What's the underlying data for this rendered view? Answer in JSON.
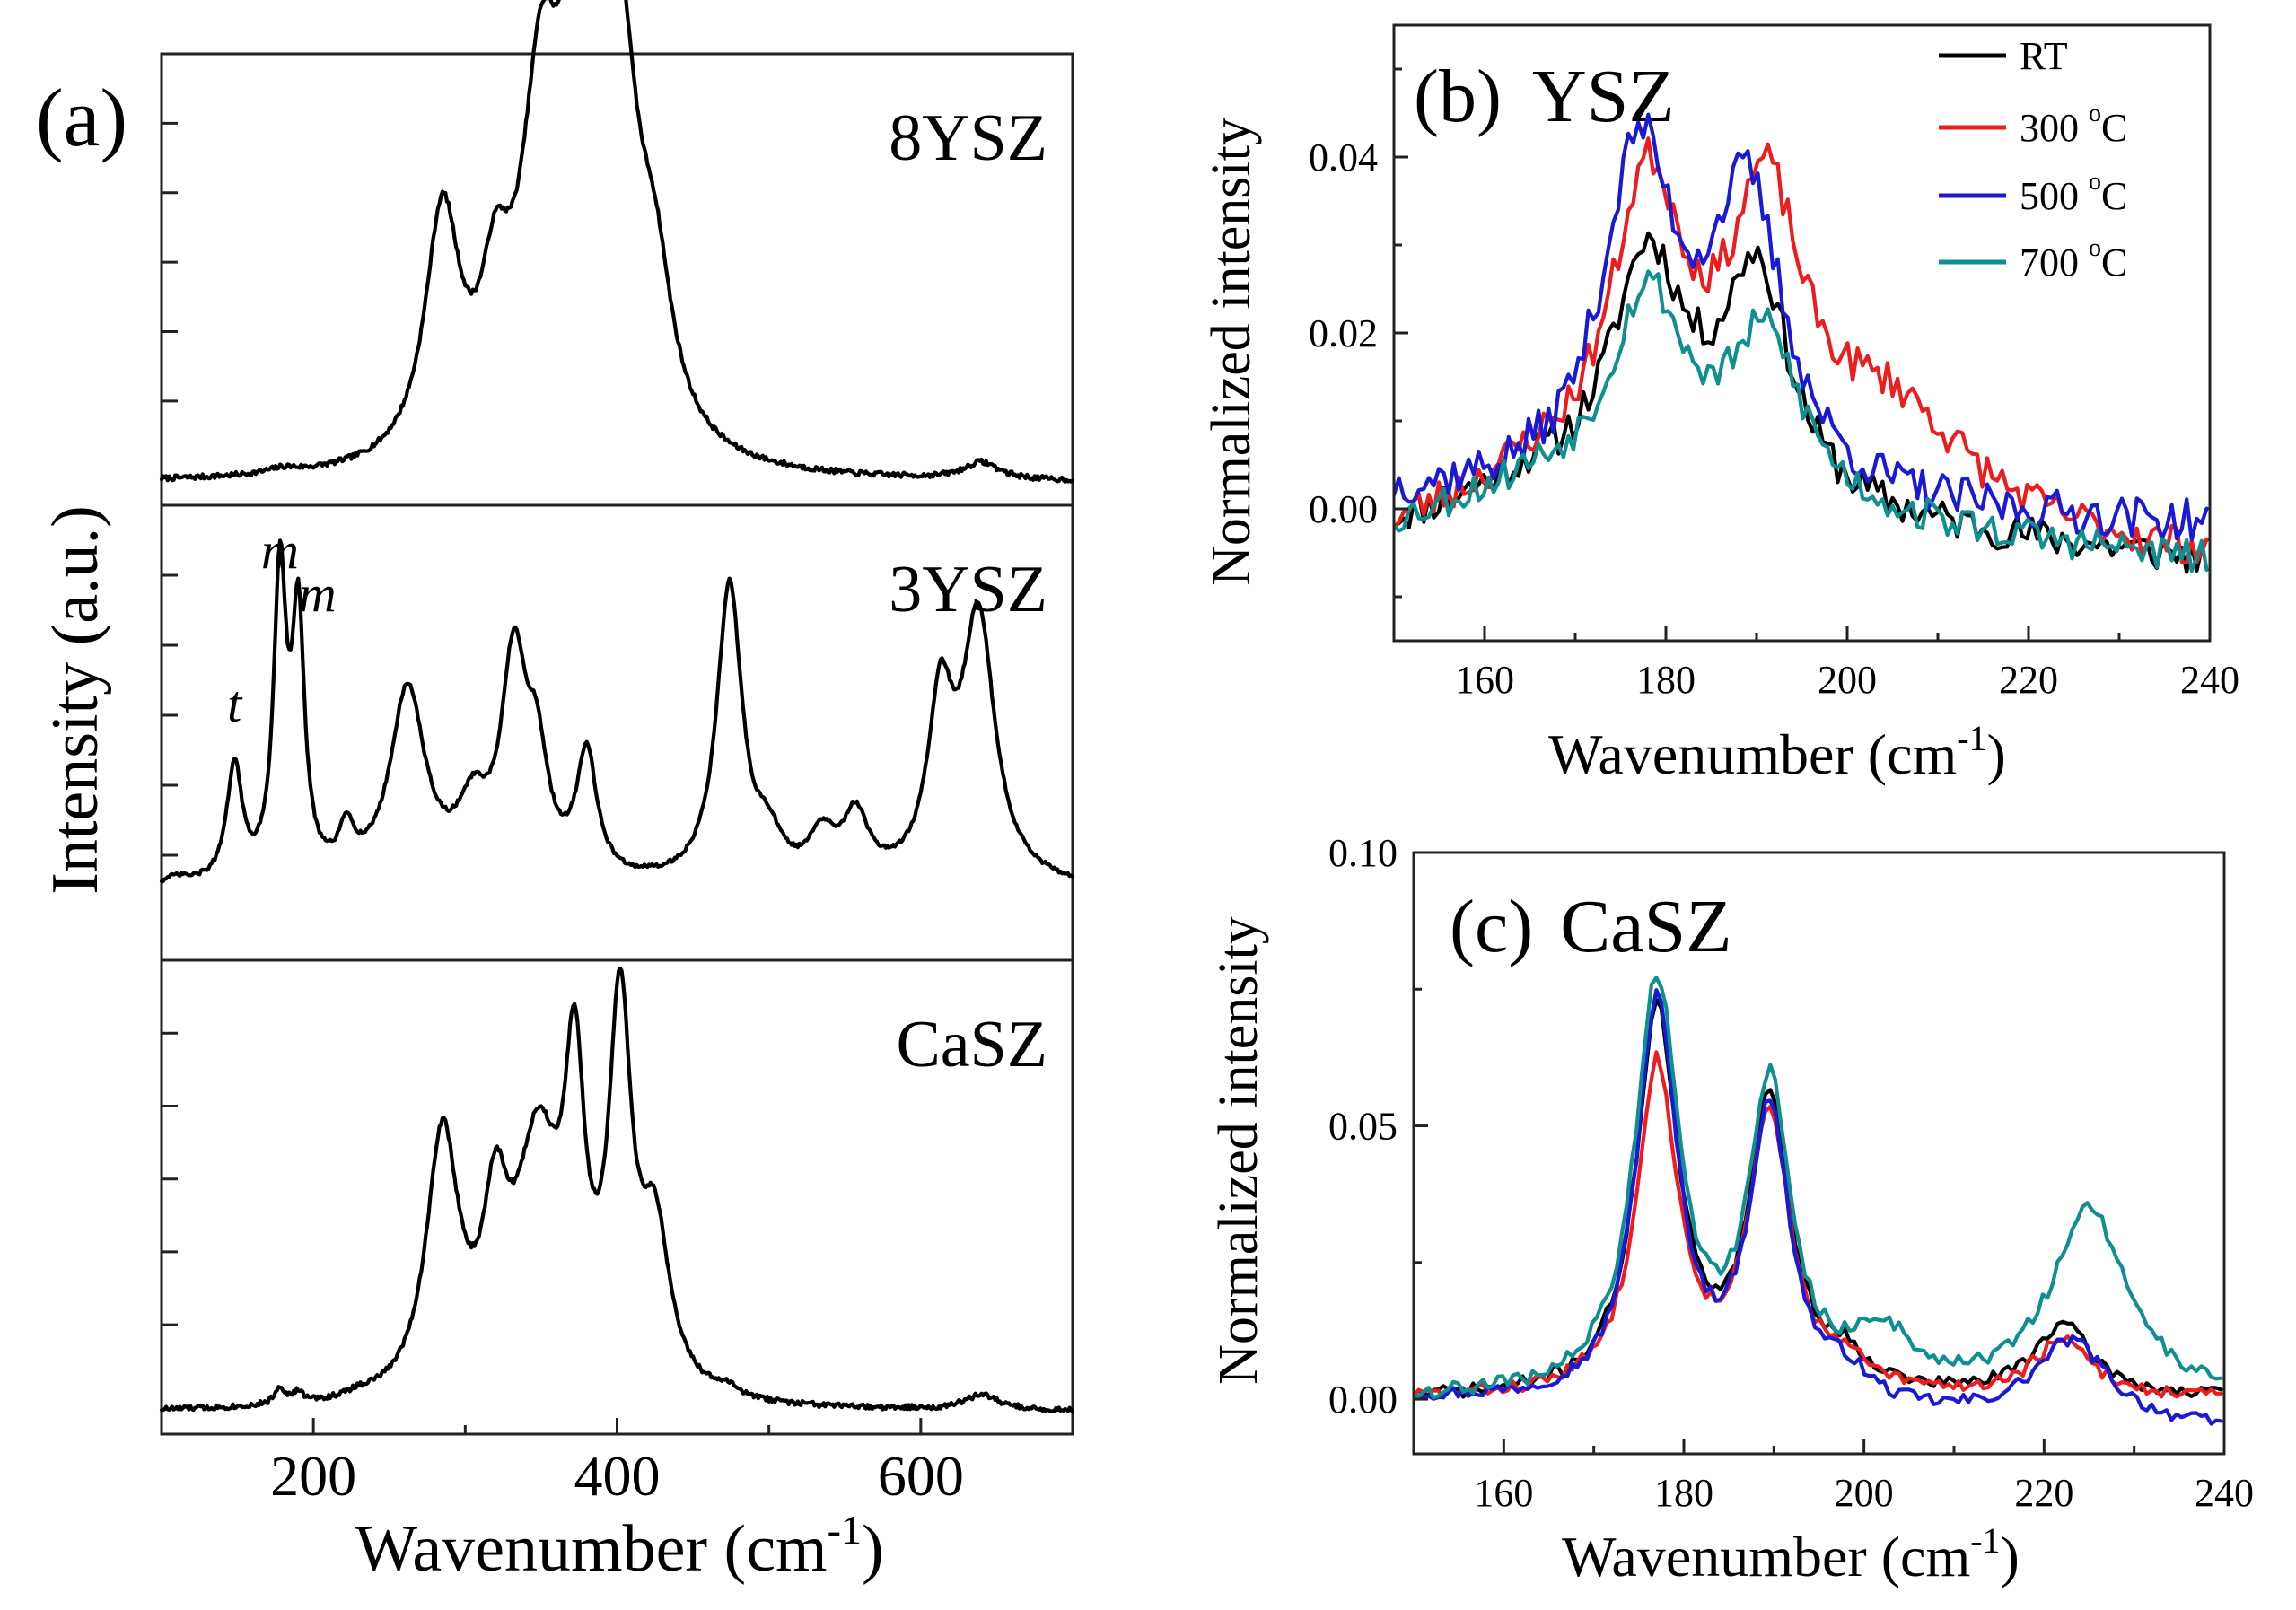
{
  "chart_data": [
    {
      "panel": "(a)",
      "type": "line",
      "title": "(a)",
      "xlabel": "Wavenumber (cm",
      "xlabel_sup": "-1",
      "xlabel_close": ")",
      "ylabel": "Intensity (a.u.)",
      "xlim": [
        100,
        700
      ],
      "xticks": [
        200,
        400,
        600
      ],
      "grid": false,
      "series": [
        {
          "name": "8YSZ",
          "color": "#000000",
          "peaks": [
            [
              180,
              0.012,
              12
            ],
            [
              285,
              0.56,
              14
            ],
            [
              320,
              0.3,
              12
            ],
            [
              350,
              0.75,
              16
            ],
            [
              375,
              0.84,
              14
            ],
            [
              400,
              0.92,
              16
            ],
            [
              425,
              0.3,
              14
            ],
            [
              640,
              0.04,
              14
            ]
          ],
          "ylim": [
            -0.05,
            1.0
          ]
        },
        {
          "name": "3YSZ",
          "color": "#000000",
          "annotations": [
            {
              "text": "t",
              "x": 148
            },
            {
              "text": "m",
              "x": 178
            },
            {
              "text": "m",
              "x": 192
            }
          ],
          "peaks": [
            [
              110,
              0.02,
              10
            ],
            [
              148,
              0.33,
              6
            ],
            [
              178,
              0.86,
              5
            ],
            [
              190,
              0.72,
              5
            ],
            [
              222,
              0.12,
              6
            ],
            [
              262,
              0.55,
              14
            ],
            [
              305,
              0.18,
              12
            ],
            [
              332,
              0.6,
              10
            ],
            [
              347,
              0.3,
              9
            ],
            [
              380,
              0.35,
              8
            ],
            [
              474,
              0.85,
              10
            ],
            [
              500,
              0.1,
              10
            ],
            [
              535,
              0.12,
              10
            ],
            [
              557,
              0.18,
              10
            ],
            [
              613,
              0.48,
              10
            ],
            [
              638,
              0.75,
              13
            ]
          ],
          "ylim": [
            -0.2,
            1.1
          ]
        },
        {
          "name": "CaSZ",
          "color": "#000000",
          "peaks": [
            [
              178,
              0.04,
              4
            ],
            [
              190,
              0.025,
              4
            ],
            [
              230,
              0.01,
              10
            ],
            [
              285,
              0.6,
              13
            ],
            [
              320,
              0.35,
              10
            ],
            [
              348,
              0.55,
              18
            ],
            [
              372,
              0.64,
              8
            ],
            [
              402,
              0.85,
              9
            ],
            [
              425,
              0.35,
              12
            ],
            [
              472,
              0.02,
              8
            ],
            [
              640,
              0.035,
              14
            ]
          ],
          "ylim": [
            -0.05,
            1.05
          ]
        }
      ]
    },
    {
      "panel": "(b)",
      "type": "line",
      "title": "(b)",
      "label": "YSZ",
      "xlabel": "Wavenumber (cm",
      "xlabel_sup": "-1",
      "xlabel_close": ")",
      "ylabel": "Normalized intensity",
      "xlim": [
        150,
        240
      ],
      "ylim": [
        -0.015,
        0.055
      ],
      "xticks": [
        160,
        180,
        200,
        220,
        240
      ],
      "yticks": [
        0.0,
        0.02,
        0.04
      ],
      "ytick_labels": [
        "0.00",
        "0.02",
        "0.04"
      ],
      "legend_position": "top-right",
      "series": [
        {
          "name": "RT",
          "color": "#000000",
          "seed": 11,
          "noise": 0.0022,
          "baseline": [
            [
              150,
              -0.002
            ],
            [
              165,
              0.002
            ],
            [
              240,
              -0.006
            ]
          ],
          "peaks": [
            [
              178,
              0.027,
              5
            ],
            [
              190,
              0.026,
              4.5
            ]
          ]
        },
        {
          "name": "300",
          "color": "#ee1c1c",
          "seed": 23,
          "noise": 0.0022,
          "baseline": [
            [
              150,
              -0.003
            ],
            [
              165,
              0.002
            ],
            [
              240,
              -0.006
            ]
          ],
          "peaks": [
            [
              178,
              0.034,
              5
            ],
            [
              191,
              0.032,
              5
            ],
            [
              205,
              0.012,
              10
            ]
          ]
        },
        {
          "name": "500",
          "color": "#1a1ad6",
          "seed": 37,
          "noise": 0.0024,
          "baseline": [
            [
              150,
              0.001
            ],
            [
              165,
              0.001
            ],
            [
              240,
              -0.002
            ]
          ],
          "peaks": [
            [
              177,
              0.038,
              5
            ],
            [
              189,
              0.033,
              5
            ]
          ]
        },
        {
          "name": "700",
          "color": "#0f8f8f",
          "seed": 53,
          "noise": 0.002,
          "baseline": [
            [
              150,
              -0.002
            ],
            [
              165,
              0.002
            ],
            [
              240,
              -0.006
            ]
          ],
          "peaks": [
            [
              178,
              0.023,
              5
            ],
            [
              191,
              0.019,
              5
            ]
          ]
        }
      ],
      "legend_entries": [
        {
          "label": "RT",
          "unit": ""
        },
        {
          "label": "300 ",
          "unit": "o",
          "suffix": "C"
        },
        {
          "label": "500 ",
          "unit": "o",
          "suffix": "C"
        },
        {
          "label": "700 ",
          "unit": "o",
          "suffix": "C"
        }
      ]
    },
    {
      "panel": "(c)",
      "type": "line",
      "title": "(c)",
      "label": "CaSZ",
      "xlabel": "Wavenumber (cm",
      "xlabel_sup": "-1",
      "xlabel_close": ")",
      "ylabel": "Normalized intensity",
      "xlim": [
        150,
        240
      ],
      "ylim": [
        -0.01,
        0.1
      ],
      "xticks": [
        160,
        180,
        200,
        220,
        240
      ],
      "yticks": [
        0.0,
        0.05,
        0.1
      ],
      "ytick_labels": [
        "0.00",
        "0.05",
        "0.10"
      ],
      "series": [
        {
          "name": "RT",
          "color": "#000000",
          "seed": 71,
          "noise": 0.0012,
          "baseline": [
            [
              150,
              0.0
            ],
            [
              240,
              0.0
            ]
          ],
          "peaks": [
            [
              177,
              0.07,
              2.8
            ],
            [
              189.5,
              0.053,
              2.8
            ],
            [
              198,
              0.005,
              3
            ],
            [
              222,
              0.013,
              4
            ]
          ]
        },
        {
          "name": "300",
          "color": "#ee1c1c",
          "seed": 83,
          "noise": 0.0012,
          "baseline": [
            [
              150,
              0.0
            ],
            [
              240,
              0.0
            ]
          ],
          "peaks": [
            [
              177,
              0.06,
              2.8
            ],
            [
              189.5,
              0.05,
              2.8
            ],
            [
              198,
              0.004,
              3
            ],
            [
              222,
              0.01,
              4
            ]
          ]
        },
        {
          "name": "500",
          "color": "#1a1ad6",
          "seed": 97,
          "noise": 0.0012,
          "baseline": [
            [
              150,
              0.0
            ],
            [
              240,
              -0.006
            ]
          ],
          "peaks": [
            [
              177,
              0.073,
              2.8
            ],
            [
              189.5,
              0.053,
              2.8
            ],
            [
              198,
              0.005,
              3
            ],
            [
              223,
              0.015,
              5
            ]
          ]
        },
        {
          "name": "700",
          "color": "#0f8f8f",
          "seed": 109,
          "noise": 0.0014,
          "baseline": [
            [
              150,
              0.0
            ],
            [
              240,
              0.0
            ]
          ],
          "peaks": [
            [
              177,
              0.075,
              3
            ],
            [
              189.5,
              0.055,
              2.8
            ],
            [
              202,
              0.01,
              4
            ],
            [
              225,
              0.034,
              5
            ]
          ]
        }
      ]
    }
  ]
}
